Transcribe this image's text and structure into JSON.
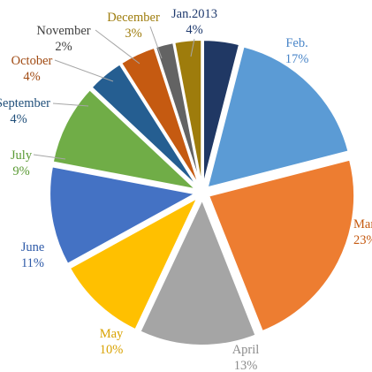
{
  "chart_data": {
    "type": "pie",
    "title": "",
    "slices": [
      {
        "name": "Jan.2013",
        "value": 4,
        "label": "4%",
        "color": "#203864",
        "text_color": "#1f3a6e"
      },
      {
        "name": "Feb.",
        "value": 17,
        "label": "17%",
        "color": "#5b9bd5",
        "text_color": "#4a86c8"
      },
      {
        "name": "March",
        "value": 23,
        "label": "23%",
        "color": "#ed7d31",
        "text_color": "#c55a11"
      },
      {
        "name": "April",
        "value": 13,
        "label": "13%",
        "color": "#a5a5a5",
        "text_color": "#8c8c8c"
      },
      {
        "name": "May",
        "value": 10,
        "label": "10%",
        "color": "#ffc000",
        "text_color": "#d9a200"
      },
      {
        "name": "June",
        "value": 11,
        "label": "11%",
        "color": "#4472c4",
        "text_color": "#2e5aa8"
      },
      {
        "name": "July",
        "value": 9,
        "label": "9%",
        "color": "#70ad47",
        "text_color": "#5a9a34"
      },
      {
        "name": "September",
        "value": 4,
        "label": "4%",
        "color": "#255e91",
        "text_color": "#1f4e79"
      },
      {
        "name": "October",
        "value": 4,
        "label": "4%",
        "color": "#c55a11",
        "text_color": "#a04a12"
      },
      {
        "name": "November",
        "value": 2,
        "label": "2%",
        "color": "#636363",
        "text_color": "#404040"
      },
      {
        "name": "December",
        "value": 3,
        "label": "3%",
        "color": "#9e7c0c",
        "text_color": "#9e7c0c"
      }
    ],
    "labels_outside": true,
    "exploded": true
  }
}
